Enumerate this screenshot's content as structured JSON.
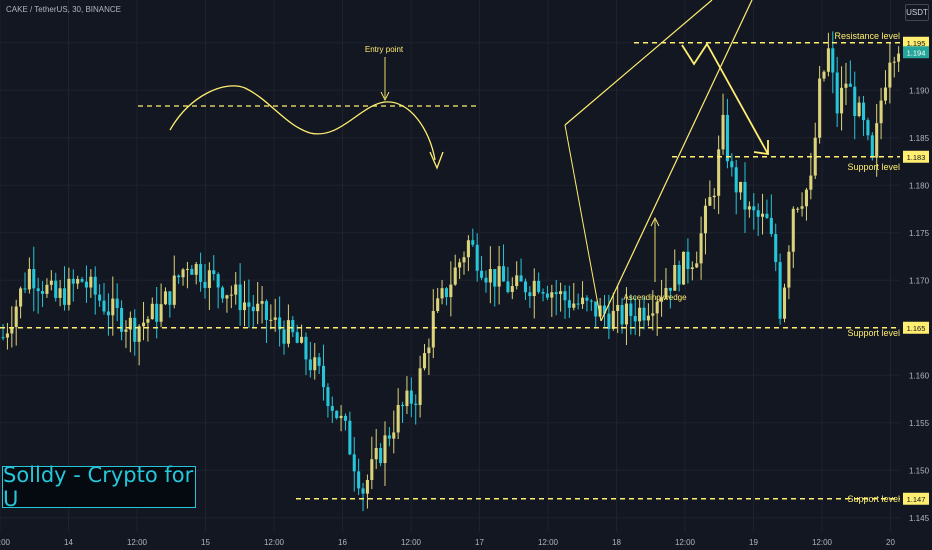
{
  "header": {
    "symbol": "CAKE / TetherUS, 30, BINANCE",
    "currency": "USDT"
  },
  "watermark": {
    "text": "Solldy - Crypto for U"
  },
  "colors": {
    "background": "#131722",
    "grid": "#1e222d",
    "bull": "#dbd37a",
    "bear": "#26c6da",
    "annotation": "#ffee70"
  },
  "chart_data": {
    "type": "candlestick",
    "timeframe": "30",
    "y_range": [
      1.1435,
      1.1995
    ],
    "y_ticks": [
      "1.145",
      "1.150",
      "1.155",
      "1.160",
      "1.165",
      "1.170",
      "1.175",
      "1.180",
      "1.185",
      "1.190",
      "1.195"
    ],
    "x_ticks": [
      "12:00",
      "14",
      "12:00",
      "15",
      "12:00",
      "16",
      "12:00",
      "17",
      "12:00",
      "18",
      "12:00",
      "19",
      "12:00",
      "20"
    ],
    "last_price": "1.194",
    "close_path": [
      [
        0,
        1.164
      ],
      [
        6,
        1.171
      ],
      [
        12,
        1.168
      ],
      [
        18,
        1.17
      ],
      [
        24,
        1.167
      ],
      [
        30,
        1.165
      ],
      [
        36,
        1.167
      ],
      [
        42,
        1.172
      ],
      [
        48,
        1.17
      ],
      [
        54,
        1.168
      ],
      [
        60,
        1.166
      ],
      [
        66,
        1.164
      ],
      [
        72,
        1.16
      ],
      [
        78,
        1.154
      ],
      [
        82,
        1.148
      ],
      [
        86,
        1.152
      ],
      [
        90,
        1.156
      ],
      [
        94,
        1.158
      ],
      [
        98,
        1.166
      ],
      [
        102,
        1.17
      ],
      [
        106,
        1.174
      ],
      [
        110,
        1.171
      ],
      [
        116,
        1.169
      ],
      [
        122,
        1.17
      ],
      [
        128,
        1.168
      ],
      [
        134,
        1.167
      ],
      [
        140,
        1.166
      ],
      [
        146,
        1.167
      ],
      [
        152,
        1.17
      ],
      [
        158,
        1.173
      ],
      [
        162,
        1.18
      ],
      [
        164,
        1.186
      ],
      [
        166,
        1.181
      ],
      [
        170,
        1.177
      ],
      [
        174,
        1.176
      ],
      [
        176,
        1.172
      ],
      [
        177,
        1.167
      ],
      [
        178,
        1.17
      ],
      [
        180,
        1.178
      ],
      [
        184,
        1.18
      ],
      [
        186,
        1.19
      ],
      [
        188,
        1.194
      ],
      [
        190,
        1.188
      ],
      [
        192,
        1.191
      ],
      [
        196,
        1.186
      ],
      [
        198,
        1.182
      ],
      [
        200,
        1.189
      ],
      [
        202,
        1.194
      ],
      [
        204,
        1.195
      ],
      [
        205,
        1.194
      ]
    ],
    "levels": [
      {
        "name": "Resistance level",
        "price": "1.195"
      },
      {
        "name": "Support level",
        "price": "1.183"
      },
      {
        "name": "Support level",
        "price": "1.165"
      },
      {
        "name": "Support level",
        "price": "1.147"
      }
    ],
    "annotations": [
      "Entry point",
      "Ascending wedge"
    ]
  }
}
